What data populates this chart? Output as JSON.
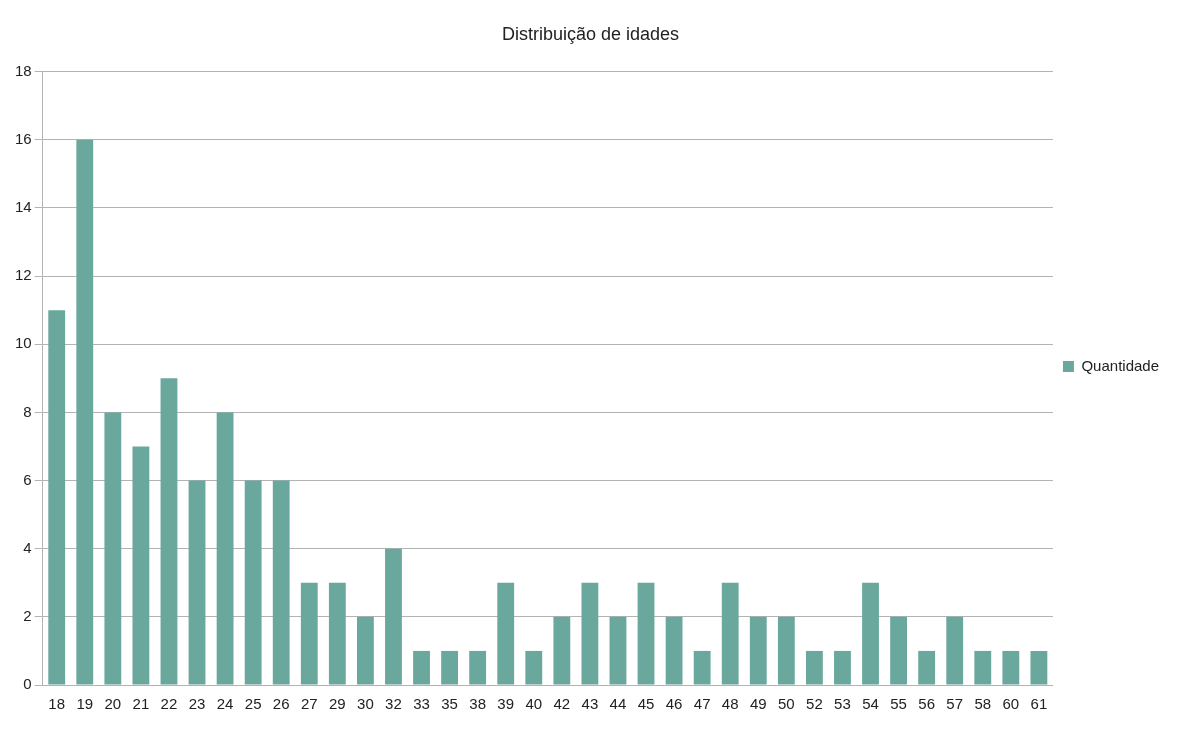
{
  "chart_data": {
    "type": "bar",
    "title": "Distribuição de idades",
    "categories": [
      "18",
      "19",
      "20",
      "21",
      "22",
      "23",
      "24",
      "25",
      "26",
      "27",
      "29",
      "30",
      "32",
      "33",
      "35",
      "38",
      "39",
      "40",
      "42",
      "43",
      "44",
      "45",
      "46",
      "47",
      "48",
      "49",
      "50",
      "52",
      "53",
      "54",
      "55",
      "56",
      "57",
      "58",
      "60",
      "61"
    ],
    "series": [
      {
        "name": "Quantidade",
        "color": "#6aa89e",
        "values": [
          11,
          16,
          8,
          7,
          9,
          6,
          8,
          6,
          6,
          3,
          3,
          2,
          4,
          1,
          1,
          1,
          3,
          1,
          2,
          3,
          2,
          3,
          2,
          1,
          3,
          2,
          2,
          1,
          1,
          3,
          2,
          1,
          2,
          1,
          1,
          1
        ]
      }
    ],
    "ylim": [
      0,
      18
    ],
    "yticks": [
      0,
      2,
      4,
      6,
      8,
      10,
      12,
      14,
      16,
      18
    ],
    "grid": "y",
    "legend": "right"
  }
}
